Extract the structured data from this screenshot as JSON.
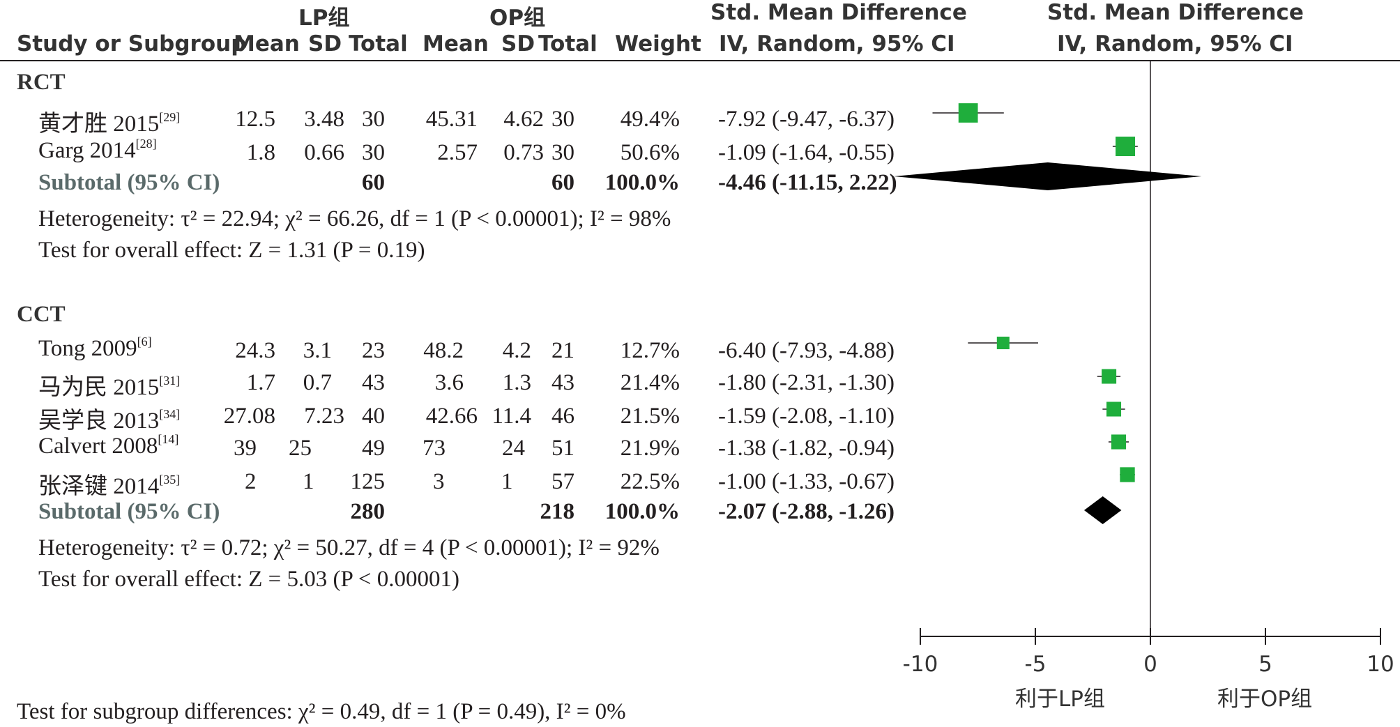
{
  "header": {
    "study_col": "Study or Subgroup",
    "group_lp": "LP组",
    "group_op": "OP组",
    "mean": "Mean",
    "sd": "SD",
    "total": "Total",
    "weight": "Weight",
    "effect_title": "Std. Mean Difference",
    "effect_method": "IV, Random, 95% CI",
    "plot_title": "Std. Mean Difference",
    "plot_method": "IV, Random, 95% CI"
  },
  "subgroups": [
    {
      "name": "RCT",
      "studies": [
        {
          "name": "黄才胜 2015",
          "ref": "[29]",
          "lp_mean": "12.5",
          "lp_sd": "3.48",
          "lp_total": "30",
          "op_mean": "45.31",
          "op_sd": "4.62",
          "op_total": "30",
          "weight": "49.4%",
          "ci_text": "-7.92 (-9.47, -6.37)"
        },
        {
          "name": "Garg 2014",
          "ref": "[28]",
          "lp_mean": "1.8",
          "lp_sd": "0.66",
          "lp_total": "30",
          "op_mean": "2.57",
          "op_sd": "0.73",
          "op_total": "30",
          "weight": "50.6%",
          "ci_text": "-1.09 (-1.64, -0.55)"
        }
      ],
      "subtotal": {
        "label": "Subtotal (95% CI)",
        "lp_total": "60",
        "op_total": "60",
        "weight": "100.0%",
        "ci_text": "-4.46 (-11.15, 2.22)"
      },
      "heterogeneity": "Heterogeneity: τ² = 22.94; χ² = 66.26, df = 1 (P < 0.00001); I² = 98%",
      "overall": "Test for overall effect: Z = 1.31 (P = 0.19)"
    },
    {
      "name": "CCT",
      "studies": [
        {
          "name": "Tong 2009",
          "ref": "[6]",
          "lp_mean": "24.3",
          "lp_sd": "3.1",
          "lp_total": "23",
          "op_mean": "48.2",
          "op_sd": "4.2",
          "op_total": "21",
          "weight": "12.7%",
          "ci_text": "-6.40 (-7.93, -4.88)"
        },
        {
          "name": "马为民 2015",
          "ref": "[31]",
          "lp_mean": "1.7",
          "lp_sd": "0.7",
          "lp_total": "43",
          "op_mean": "3.6",
          "op_sd": "1.3",
          "op_total": "43",
          "weight": "21.4%",
          "ci_text": "-1.80 (-2.31, -1.30)"
        },
        {
          "name": "吴学良 2013",
          "ref": "[34]",
          "lp_mean": "27.08",
          "lp_sd": "7.23",
          "lp_total": "40",
          "op_mean": "42.66",
          "op_sd": "11.4",
          "op_total": "46",
          "weight": "21.5%",
          "ci_text": "-1.59 (-2.08, -1.10)"
        },
        {
          "name": "Calvert 2008",
          "ref": "[14]",
          "lp_mean": "39",
          "lp_sd": "25",
          "lp_total": "49",
          "op_mean": "73",
          "op_sd": "24",
          "op_total": "51",
          "weight": "21.9%",
          "ci_text": "-1.38 (-1.82, -0.94)"
        },
        {
          "name": "张泽键 2014",
          "ref": "[35]",
          "lp_mean": "2",
          "lp_sd": "1",
          "lp_total": "125",
          "op_mean": "3",
          "op_sd": "1",
          "op_total": "57",
          "weight": "22.5%",
          "ci_text": "-1.00 (-1.33, -0.67)"
        }
      ],
      "subtotal": {
        "label": "Subtotal (95% CI)",
        "lp_total": "280",
        "op_total": "218",
        "weight": "100.0%",
        "ci_text": "-2.07 (-2.88, -1.26)"
      },
      "heterogeneity": "Heterogeneity: τ² = 0.72; χ² = 50.27, df = 4 (P < 0.00001); I² = 92%",
      "overall": "Test for overall effect: Z = 5.03 (P < 0.00001)"
    }
  ],
  "subgroup_differences": "Test for subgroup differences: χ² = 0.49, df = 1 (P = 0.49), I² = 0%",
  "favours": {
    "left": "利于LP组",
    "right": "利于OP组"
  },
  "colors": {
    "marker": "#1fae3c",
    "diamond": "#000000",
    "text": "#231f20",
    "subtotal_label": "#5a6a6a"
  },
  "chart_data": {
    "type": "forest",
    "xlim": [
      -10,
      10
    ],
    "xticks": [
      -10,
      -5,
      0,
      5,
      10
    ],
    "xtick_labels": [
      "-10",
      "-5",
      "0",
      "5",
      "10"
    ],
    "favours_left": "利于LP组",
    "favours_right": "利于OP组",
    "estimates": [
      {
        "study": "黄才胜 2015",
        "group": "RCT",
        "smd": -7.92,
        "lower": -9.47,
        "upper": -6.37,
        "weight": 49.4
      },
      {
        "study": "Garg 2014",
        "group": "RCT",
        "smd": -1.09,
        "lower": -1.64,
        "upper": -0.55,
        "weight": 50.6
      },
      {
        "study": "Subtotal (95% CI)",
        "group": "RCT",
        "smd": -4.46,
        "lower": -11.15,
        "upper": 2.22,
        "weight": 100.0,
        "pooled": true
      },
      {
        "study": "Tong 2009",
        "group": "CCT",
        "smd": -6.4,
        "lower": -7.93,
        "upper": -4.88,
        "weight": 12.7
      },
      {
        "study": "马为民 2015",
        "group": "CCT",
        "smd": -1.8,
        "lower": -2.31,
        "upper": -1.3,
        "weight": 21.4
      },
      {
        "study": "吴学良 2013",
        "group": "CCT",
        "smd": -1.59,
        "lower": -2.08,
        "upper": -1.1,
        "weight": 21.5
      },
      {
        "study": "Calvert 2008",
        "group": "CCT",
        "smd": -1.38,
        "lower": -1.82,
        "upper": -0.94,
        "weight": 21.9
      },
      {
        "study": "张泽键 2014",
        "group": "CCT",
        "smd": -1.0,
        "lower": -1.33,
        "upper": -0.67,
        "weight": 22.5
      },
      {
        "study": "Subtotal (95% CI)",
        "group": "CCT",
        "smd": -2.07,
        "lower": -2.88,
        "upper": -1.26,
        "weight": 100.0,
        "pooled": true
      }
    ]
  }
}
